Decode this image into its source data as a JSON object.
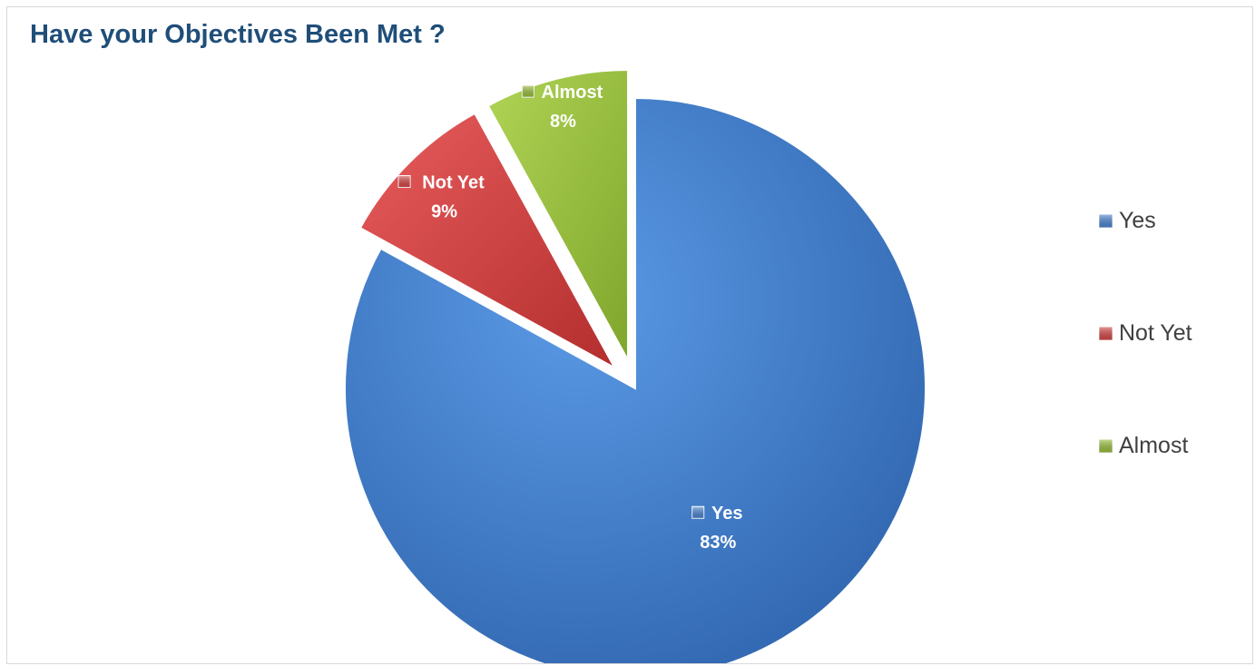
{
  "chart_data": {
    "type": "pie",
    "title": "Have your Objectives Been Met ?",
    "categories": [
      "Yes",
      "Not Yet",
      "Almost"
    ],
    "values": [
      83,
      9,
      8
    ],
    "unit": "%",
    "data_labels": [
      {
        "category": "Yes",
        "value_text": "83%"
      },
      {
        "category": "Not Yet",
        "value_text": "9%"
      },
      {
        "category": "Almost",
        "value_text": "8%"
      }
    ],
    "legend": {
      "placement": "right",
      "entries": [
        "Yes",
        "Not Yet",
        "Almost"
      ]
    },
    "colors": {
      "Yes": "#4a86d4",
      "Not Yet": "#d94646",
      "Almost": "#9bc23c"
    },
    "exploded": [
      "Not Yet",
      "Almost"
    ]
  }
}
